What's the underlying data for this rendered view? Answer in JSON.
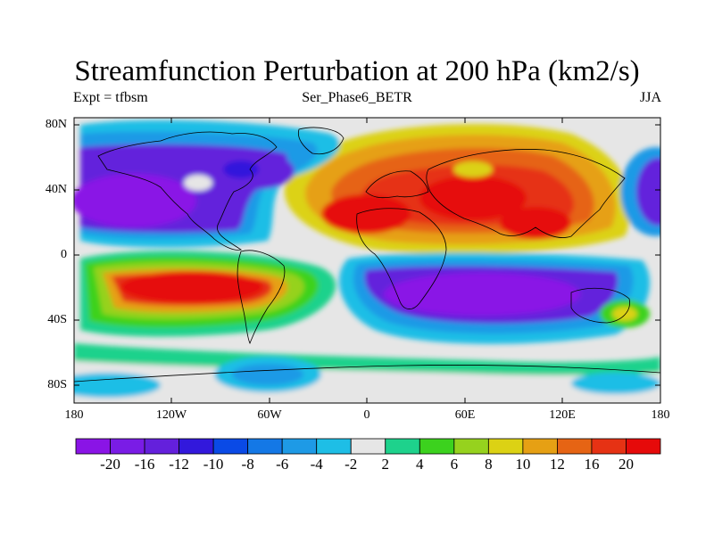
{
  "title": "Streamfunction Perturbation at 200 hPa (km2/s)",
  "subtitle_left": "Expt = tfbsm",
  "subtitle_center": "Ser_Phase6_BETR",
  "subtitle_right": "JJA",
  "lat_labels": [
    "80N",
    "40N",
    "0",
    "40S",
    "80S"
  ],
  "lon_labels": [
    "180",
    "120W",
    "60W",
    "0",
    "60E",
    "120E",
    "180"
  ],
  "colorbar": {
    "labels": [
      "-20",
      "-16",
      "-12",
      "-10",
      "-8",
      "-6",
      "-4",
      "-2",
      "2",
      "4",
      "6",
      "8",
      "10",
      "12",
      "16",
      "20"
    ],
    "colors": [
      "#8a14e6",
      "#7a1ce6",
      "#6420dc",
      "#3218dc",
      "#0a4ae6",
      "#1478e6",
      "#1e9ae6",
      "#1ebee6",
      "#e6e6e6",
      "#1ed28c",
      "#3cd21e",
      "#96d21e",
      "#dcd214",
      "#e6a014",
      "#e66414",
      "#e63214",
      "#e60a0a"
    ]
  }
}
